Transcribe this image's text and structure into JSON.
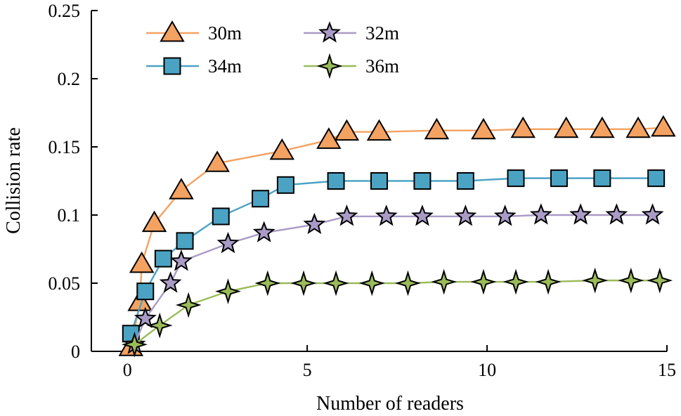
{
  "chart_data": {
    "type": "line",
    "xlabel": "Number of readers",
    "ylabel": "Collision rate",
    "xlim": [
      -1,
      15
    ],
    "ylim": [
      0,
      0.25
    ],
    "xticks": [
      0,
      5,
      10,
      15
    ],
    "xtick_labels": [
      "0",
      "5",
      "10",
      "15"
    ],
    "yticks": [
      0,
      0.05,
      0.1,
      0.15,
      0.2,
      0.25
    ],
    "ytick_labels": [
      "0",
      "0.05",
      "0.1",
      "0.15",
      "0.2",
      "0.25"
    ],
    "grid": false,
    "legend_position": "top-left",
    "series": [
      {
        "name": "30m",
        "color": "#F4A261",
        "marker": "triangle",
        "x": [
          0.1,
          0.35,
          0.4,
          0.75,
          1.5,
          2.5,
          4.3,
          5.6,
          6.1,
          7.0,
          8.6,
          9.9,
          11.0,
          12.2,
          13.2,
          14.2,
          14.9
        ],
        "y": [
          0.003,
          0.036,
          0.064,
          0.094,
          0.118,
          0.138,
          0.147,
          0.155,
          0.161,
          0.161,
          0.162,
          0.162,
          0.163,
          0.163,
          0.163,
          0.163,
          0.164
        ]
      },
      {
        "name": "34m",
        "color": "#4BA3C3",
        "marker": "square",
        "x": [
          0.1,
          0.5,
          1.0,
          1.6,
          2.6,
          3.7,
          4.4,
          5.8,
          7.0,
          8.2,
          9.4,
          10.8,
          12.0,
          13.2,
          14.7
        ],
        "y": [
          0.013,
          0.044,
          0.068,
          0.081,
          0.099,
          0.112,
          0.122,
          0.125,
          0.125,
          0.125,
          0.125,
          0.127,
          0.127,
          0.127,
          0.127
        ]
      },
      {
        "name": "32m",
        "color": "#A99BC6",
        "marker": "star",
        "x": [
          0.2,
          0.5,
          1.2,
          1.5,
          2.8,
          3.8,
          5.2,
          6.1,
          7.2,
          8.2,
          9.4,
          10.5,
          11.5,
          12.6,
          13.6,
          14.6
        ],
        "y": [
          0.005,
          0.024,
          0.05,
          0.066,
          0.079,
          0.087,
          0.093,
          0.099,
          0.099,
          0.099,
          0.099,
          0.099,
          0.1,
          0.1,
          0.1,
          0.1
        ]
      },
      {
        "name": "36m",
        "color": "#9BBB59",
        "marker": "star4",
        "x": [
          0.2,
          0.9,
          1.7,
          2.8,
          3.9,
          4.9,
          5.8,
          6.8,
          7.8,
          8.8,
          9.9,
          10.8,
          11.7,
          13.0,
          14.0,
          14.8
        ],
        "y": [
          0.005,
          0.019,
          0.034,
          0.044,
          0.05,
          0.05,
          0.05,
          0.05,
          0.05,
          0.051,
          0.051,
          0.051,
          0.051,
          0.052,
          0.052,
          0.052
        ]
      }
    ]
  }
}
